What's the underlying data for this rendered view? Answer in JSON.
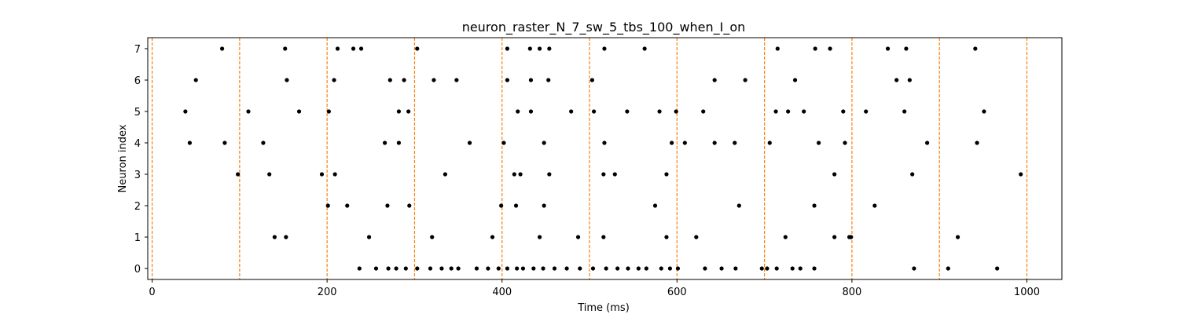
{
  "chart_data": {
    "type": "scatter",
    "title": "neuron_raster_N_7_sw_5_tbs_100_when_I_on",
    "xlabel": "Time (ms)",
    "ylabel": "Neuron index",
    "xlim": [
      -5,
      1040
    ],
    "ylim": [
      -0.35,
      7.35
    ],
    "xticks": [
      0,
      200,
      400,
      600,
      800,
      1000
    ],
    "yticks": [
      0,
      1,
      2,
      3,
      4,
      5,
      6,
      7
    ],
    "grid": false,
    "marker_color": "#000000",
    "vline_color": "#ff7f0e",
    "vlines": [
      0,
      100,
      200,
      300,
      400,
      500,
      600,
      700,
      800,
      900,
      1000
    ],
    "series": [
      {
        "neuron": 0,
        "times": [
          237,
          256,
          270,
          279,
          290,
          303,
          318,
          331,
          342,
          350,
          371,
          384,
          396,
          406,
          417,
          424,
          436,
          447,
          460,
          474,
          489,
          504,
          519,
          532,
          544,
          556,
          565,
          582,
          592,
          601,
          632,
          651,
          667,
          697,
          703,
          714,
          732,
          741,
          757,
          871,
          910,
          966
        ]
      },
      {
        "neuron": 1,
        "times": [
          140,
          153,
          248,
          320,
          389,
          443,
          487,
          516,
          588,
          622,
          724,
          780,
          797,
          799,
          921
        ]
      },
      {
        "neuron": 2,
        "times": [
          201,
          223,
          269,
          294,
          399,
          416,
          448,
          575,
          671,
          757,
          826
        ]
      },
      {
        "neuron": 3,
        "times": [
          98,
          134,
          194,
          209,
          335,
          414,
          421,
          454,
          516,
          529,
          588,
          780,
          869,
          993
        ]
      },
      {
        "neuron": 4,
        "times": [
          43,
          83,
          127,
          266,
          282,
          363,
          402,
          448,
          517,
          594,
          609,
          643,
          666,
          706,
          762,
          792,
          886,
          943
        ]
      },
      {
        "neuron": 5,
        "times": [
          38,
          110,
          168,
          202,
          282,
          293,
          418,
          433,
          479,
          505,
          543,
          580,
          599,
          630,
          713,
          727,
          745,
          790,
          816,
          860,
          951
        ]
      },
      {
        "neuron": 6,
        "times": [
          50,
          154,
          208,
          272,
          288,
          322,
          348,
          406,
          433,
          453,
          503,
          643,
          678,
          735,
          851,
          866
        ]
      },
      {
        "neuron": 7,
        "times": [
          80,
          152,
          212,
          230,
          239,
          303,
          406,
          432,
          443,
          454,
          517,
          563,
          715,
          758,
          775,
          841,
          862,
          941
        ]
      }
    ]
  }
}
